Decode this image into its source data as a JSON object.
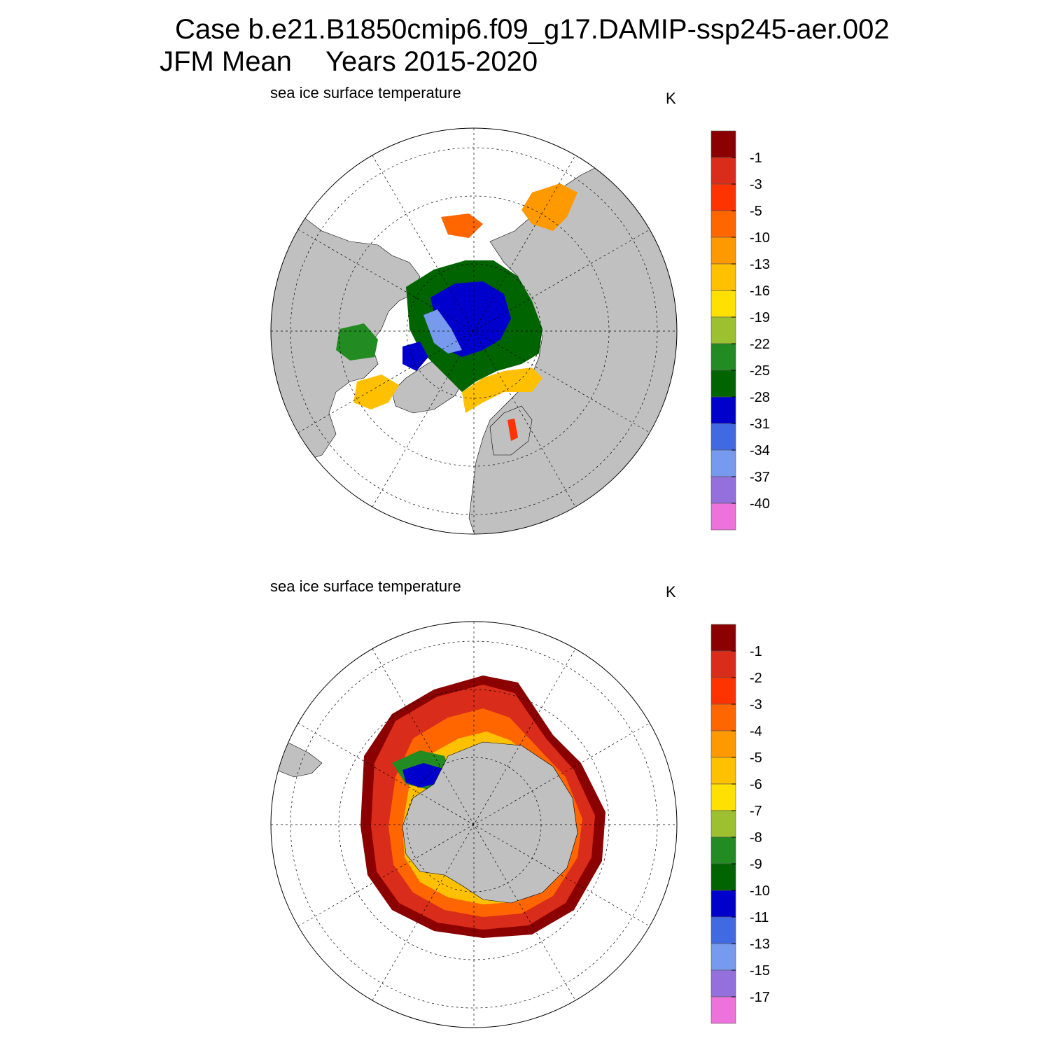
{
  "title": {
    "case": "Case b.e21.B1850cmip6.f09_g17.DAMIP-ssp245-aer.002",
    "season": "JFM Mean",
    "years": "Years 2015-2020"
  },
  "panels": [
    {
      "id": "north",
      "label": "sea ice surface temperature",
      "units": "K",
      "colorbar": {
        "labels": [
          "-1",
          "-3",
          "-5",
          "-10",
          "-13",
          "-16",
          "-19",
          "-22",
          "-25",
          "-28",
          "-31",
          "-34",
          "-37",
          "-40"
        ],
        "colors": [
          "#8b0000",
          "#d92c1a",
          "#ff3300",
          "#ff6600",
          "#ff9900",
          "#ffc000",
          "#ffe000",
          "#9dc030",
          "#228b22",
          "#006400",
          "#0000cd",
          "#4169e1",
          "#7799ee",
          "#9370db",
          "#ee72dc"
        ]
      }
    },
    {
      "id": "south",
      "label": "sea ice surface temperature",
      "units": "K",
      "colorbar": {
        "labels": [
          "-1",
          "-2",
          "-3",
          "-4",
          "-5",
          "-6",
          "-7",
          "-8",
          "-9",
          "-10",
          "-11",
          "-13",
          "-15",
          "-17"
        ],
        "colors": [
          "#8b0000",
          "#d92c1a",
          "#ff3300",
          "#ff6600",
          "#ff9900",
          "#ffc000",
          "#ffe000",
          "#9dc030",
          "#228b22",
          "#006400",
          "#0000cd",
          "#4169e1",
          "#7799ee",
          "#9370db",
          "#ee72dc"
        ]
      }
    }
  ],
  "map": {
    "land_color": "#c0c0c0",
    "ocean_color": "#ffffff"
  }
}
